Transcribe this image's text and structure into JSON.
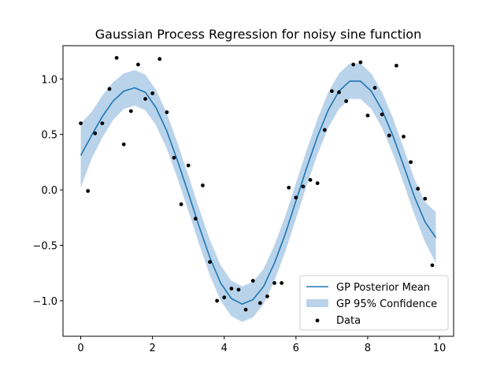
{
  "chart_data": {
    "type": "line",
    "title": "Gaussian Process Regression for noisy sine function",
    "xlabel": "",
    "ylabel": "",
    "xlim": [
      -0.495,
      10.395
    ],
    "ylim": [
      -1.32,
      1.3
    ],
    "xticks": [
      0,
      2,
      4,
      6,
      8,
      10
    ],
    "xtick_labels": [
      "0",
      "2",
      "4",
      "6",
      "8",
      "10"
    ],
    "yticks": [
      -1.0,
      -0.5,
      0.0,
      0.5,
      1.0
    ],
    "ytick_labels": [
      "−1.0",
      "−0.5",
      "0.0",
      "0.5",
      "1.0"
    ],
    "grid": false,
    "legend_position": "lower-right",
    "colors": {
      "mean": "#1f77b4",
      "band": "#b9d3ea",
      "data": "#000000"
    },
    "series": [
      {
        "name": "GP Posterior Mean",
        "kind": "line",
        "x": [
          0.0,
          0.3,
          0.6,
          0.9,
          1.2,
          1.5,
          1.8,
          2.1,
          2.4,
          2.7,
          3.0,
          3.3,
          3.6,
          3.9,
          4.2,
          4.5,
          4.8,
          5.1,
          5.4,
          5.7,
          6.0,
          6.3,
          6.6,
          6.9,
          7.2,
          7.5,
          7.8,
          8.1,
          8.4,
          8.7,
          9.0,
          9.3,
          9.6,
          9.9
        ],
        "y": [
          0.31,
          0.49,
          0.66,
          0.8,
          0.89,
          0.92,
          0.88,
          0.74,
          0.53,
          0.26,
          -0.03,
          -0.33,
          -0.61,
          -0.84,
          -0.98,
          -1.03,
          -0.99,
          -0.87,
          -0.66,
          -0.4,
          -0.1,
          0.2,
          0.48,
          0.72,
          0.89,
          0.98,
          0.98,
          0.89,
          0.72,
          0.49,
          0.22,
          -0.06,
          -0.29,
          -0.43
        ]
      },
      {
        "name": "GP 95% Confidence",
        "kind": "band",
        "x": [
          0.0,
          0.3,
          0.6,
          0.9,
          1.2,
          1.5,
          1.8,
          2.1,
          2.4,
          2.7,
          3.0,
          3.3,
          3.6,
          3.9,
          4.2,
          4.5,
          4.8,
          5.1,
          5.4,
          5.7,
          6.0,
          6.3,
          6.6,
          6.9,
          7.2,
          7.5,
          7.8,
          8.1,
          8.4,
          8.7,
          9.0,
          9.3,
          9.6,
          9.9
        ],
        "lower": [
          0.02,
          0.28,
          0.47,
          0.63,
          0.73,
          0.76,
          0.72,
          0.58,
          0.37,
          0.1,
          -0.19,
          -0.49,
          -0.77,
          -1.0,
          -1.14,
          -1.19,
          -1.15,
          -1.03,
          -0.82,
          -0.56,
          -0.26,
          0.04,
          0.32,
          0.56,
          0.73,
          0.82,
          0.82,
          0.73,
          0.56,
          0.33,
          0.06,
          -0.22,
          -0.47,
          -0.66
        ],
        "upper": [
          0.6,
          0.7,
          0.85,
          0.97,
          1.05,
          1.08,
          1.04,
          0.9,
          0.69,
          0.42,
          0.13,
          -0.17,
          -0.45,
          -0.68,
          -0.82,
          -0.87,
          -0.83,
          -0.71,
          -0.5,
          -0.24,
          0.06,
          0.36,
          0.64,
          0.88,
          1.05,
          1.14,
          1.14,
          1.05,
          0.88,
          0.65,
          0.38,
          0.1,
          -0.11,
          -0.2
        ]
      },
      {
        "name": "Data",
        "kind": "scatter",
        "x": [
          0.0,
          0.2,
          0.4,
          0.6,
          0.8,
          1.0,
          1.2,
          1.4,
          1.6,
          1.8,
          2.0,
          2.2,
          2.4,
          2.6,
          2.8,
          3.0,
          3.2,
          3.4,
          3.6,
          3.8,
          4.0,
          4.2,
          4.4,
          4.6,
          4.8,
          5.0,
          5.2,
          5.4,
          5.6,
          5.8,
          6.0,
          6.2,
          6.4,
          6.6,
          6.8,
          7.0,
          7.2,
          7.4,
          7.6,
          7.8,
          8.0,
          8.2,
          8.4,
          8.6,
          8.8,
          9.0,
          9.2,
          9.4,
          9.6,
          9.8
        ],
        "y": [
          0.6,
          -0.01,
          0.51,
          0.6,
          0.91,
          1.19,
          0.41,
          0.71,
          1.13,
          0.82,
          0.87,
          1.18,
          0.7,
          0.29,
          -0.13,
          0.22,
          -0.26,
          0.04,
          -0.65,
          -1.0,
          -0.97,
          -0.89,
          -0.9,
          -1.08,
          -0.82,
          -1.02,
          -0.96,
          -0.84,
          -0.84,
          0.02,
          -0.07,
          0.03,
          0.09,
          0.06,
          0.54,
          0.89,
          0.88,
          0.8,
          1.13,
          1.15,
          0.67,
          0.92,
          0.68,
          0.49,
          1.12,
          0.48,
          0.25,
          0.01,
          -0.08,
          -0.68
        ]
      }
    ]
  }
}
